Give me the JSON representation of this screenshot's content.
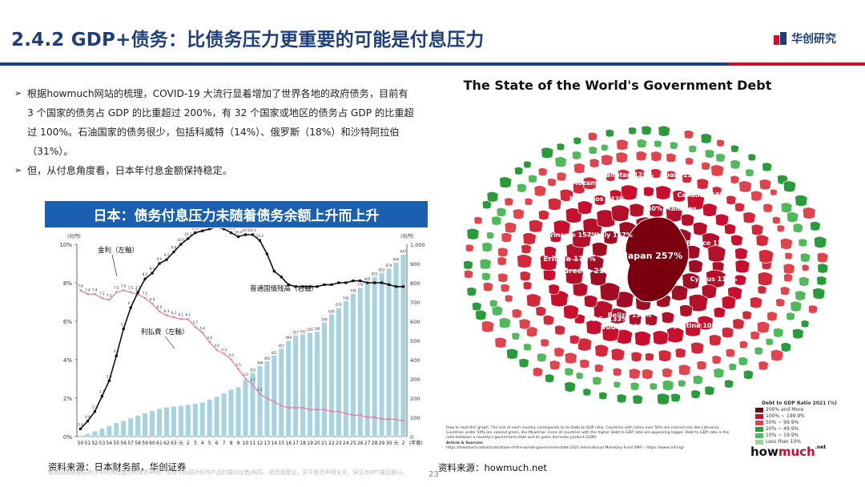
{
  "header": {
    "title": "2.4.2 GDP+债务：比债务压力更重要的可能是付息压力",
    "logo_text": "华创研究"
  },
  "bullets": [
    "根据howmuch网站的梳理，COVID-19 大流行显着增加了世界各地的政府债务，目前有 3 个国家的债务占 GDP 的比重超过 200%，有 32 个国家或地区的债务占 GDP 的比重超过 100%。石油国家的债务很少，包括科威特（14%）、俄罗斯（18%）和沙特阿拉伯（31%）。",
    "但，从付息角度看，日本年付息金额保持稳定。"
  ],
  "left_panel": {
    "banner": "日本：债务付息压力未随着债务余额上升而上升",
    "source": "资料来源：日本财务部，华创证券",
    "disclaimer": "请务必阅读报告附注中的风险提示和免责声明，本页不构成对任何产品的要约出售/购买。相信或建议，关于免责声明全文，详见本PPT最后部分。"
  },
  "chart_data": {
    "type": "line+bar",
    "left_unit": "(兆円)",
    "right_unit": "(兆円)",
    "x_unit": "(年度)",
    "x_ticks": [
      "50",
      "51",
      "52",
      "53",
      "54",
      "55",
      "56",
      "57",
      "58",
      "59",
      "60",
      "61",
      "62",
      "63",
      "元",
      "2",
      "3",
      "4",
      "5",
      "6",
      "7",
      "8",
      "9",
      "10",
      "11",
      "12",
      "13",
      "14",
      "15",
      "16",
      "17",
      "18",
      "19",
      "20",
      "21",
      "22",
      "23",
      "24",
      "25",
      "26",
      "27",
      "28",
      "29",
      "30",
      "元",
      "2"
    ],
    "y_left_ticks": [
      "0%",
      "2%",
      "4%",
      "6%",
      "8%",
      "10%"
    ],
    "y_left_range": [
      0,
      10
    ],
    "y_right_ticks": [
      "0",
      "100",
      "200",
      "300",
      "400",
      "500",
      "600",
      "700",
      "800",
      "900",
      "1,000"
    ],
    "y_right_range": [
      0,
      1000
    ],
    "series": [
      {
        "name": "金利（左軸）",
        "color": "#e48aa6",
        "axis": "left",
        "values": [
          7.6,
          7.4,
          7.4,
          7.2,
          7.1,
          7.5,
          7.6,
          7.5,
          7.4,
          7.2,
          6.9,
          6.5,
          6.3,
          6.2,
          6.1,
          6.1,
          5.7,
          5.4,
          4.9,
          4.5,
          4.3,
          4.0,
          3.5,
          3.0,
          2.7,
          2.2,
          2.0,
          1.8,
          1.6,
          1.5,
          1.5,
          1.5,
          1.4,
          1.4,
          1.4,
          1.3,
          1.3,
          1.2,
          1.1,
          1.1,
          1.0,
          1.0,
          0.9,
          0.9,
          0.9,
          0.8
        ]
      },
      {
        "name": "利払費（左軸）",
        "color": "#111111",
        "axis": "left",
        "values": [
          0.4,
          0.8,
          1.3,
          2.1,
          2.9,
          4.2,
          5.6,
          6.7,
          7.5,
          8.2,
          8.5,
          9.0,
          9.2,
          9.6,
          10.0,
          10.3,
          10.6,
          10.7,
          10.8,
          10.9,
          10.8,
          10.6,
          10.4,
          10.5,
          10.5,
          10.2,
          9.5,
          8.6,
          8.3,
          7.9,
          7.8,
          7.8,
          7.8,
          7.8,
          7.9,
          7.9,
          8.0,
          8.0,
          8.1,
          8.1,
          8.0,
          8.0,
          8.0,
          7.9,
          7.8,
          7.8
        ]
      },
      {
        "name": "普通国債残高（右軸）",
        "color": "#a7d3e0",
        "axis": "right",
        "values": [
          6,
          15,
          28,
          43,
          56,
          71,
          82,
          96,
          110,
          122,
          134,
          145,
          152,
          157,
          161,
          166,
          172,
          178,
          193,
          207,
          225,
          245,
          258,
          295,
          332,
          368,
          392,
          421,
          457,
          499,
          527,
          532,
          541,
          546,
          594,
          636,
          670,
          705,
          744,
          774,
          805,
          831,
          853,
          874,
          906,
          947
        ]
      }
    ],
    "annotations": [
      "金利（左軸）",
      "利払費（左軸）",
      "普通国債残高（右軸）"
    ]
  },
  "right_panel": {
    "title": "The State of the World's Government Debt",
    "source": "资料来源：howmuch.net",
    "brand_a": "how",
    "brand_b": "much",
    "brand_suffix": ".net",
    "center_labels": [
      "Japan 257%",
      "Sudan 212%",
      "Greece 211%",
      "Eritrea 176%",
      "Suriname 157%",
      "Italy 157%",
      "140% Maldives",
      "Barbados 143%",
      "Belize 135%",
      "U.S. 133%",
      "Bhutan 123%",
      "Spain 118%",
      "France 115%",
      "Canada 116%",
      "Cyprus 113%",
      "Argentina 103%",
      "Mozambique 122%"
    ],
    "howto": "How to read this graph: The size of each country corresponds to its Debt to GDP ratio. Countries with ratios over 50% are colored red, like Lithuania. Countries under 50% are colored green, like Myanmar. Icons of countries with the higher Debt to GDP ratio are appearing bigger. Debt to GDP ratio is the ratio between a country's government debt and its gross domestic product (GDP).",
    "sources_label": "Article & Sources:",
    "sources": "https://howmuch.net/articles/state-of-the-worlds-government-debt-2021 International Monetary Fund (IMF) - https://www.imf.org/",
    "legend_title": "Debt to GDP Ratio 2021 (%)",
    "legend": [
      {
        "label": "200% and More",
        "color": "#7a0010"
      },
      {
        "label": "100% ~ 199.9%",
        "color": "#c8102e"
      },
      {
        "label": "50% ~ 99.9%",
        "color": "#e0454e"
      },
      {
        "label": "20% ~ 49.9%",
        "color": "#2a9a3a"
      },
      {
        "label": "10% ~ 19.9%",
        "color": "#52b85c"
      },
      {
        "label": "Less than 10%",
        "color": "#9ad49a"
      }
    ]
  },
  "footer": {
    "page_number": "23"
  }
}
